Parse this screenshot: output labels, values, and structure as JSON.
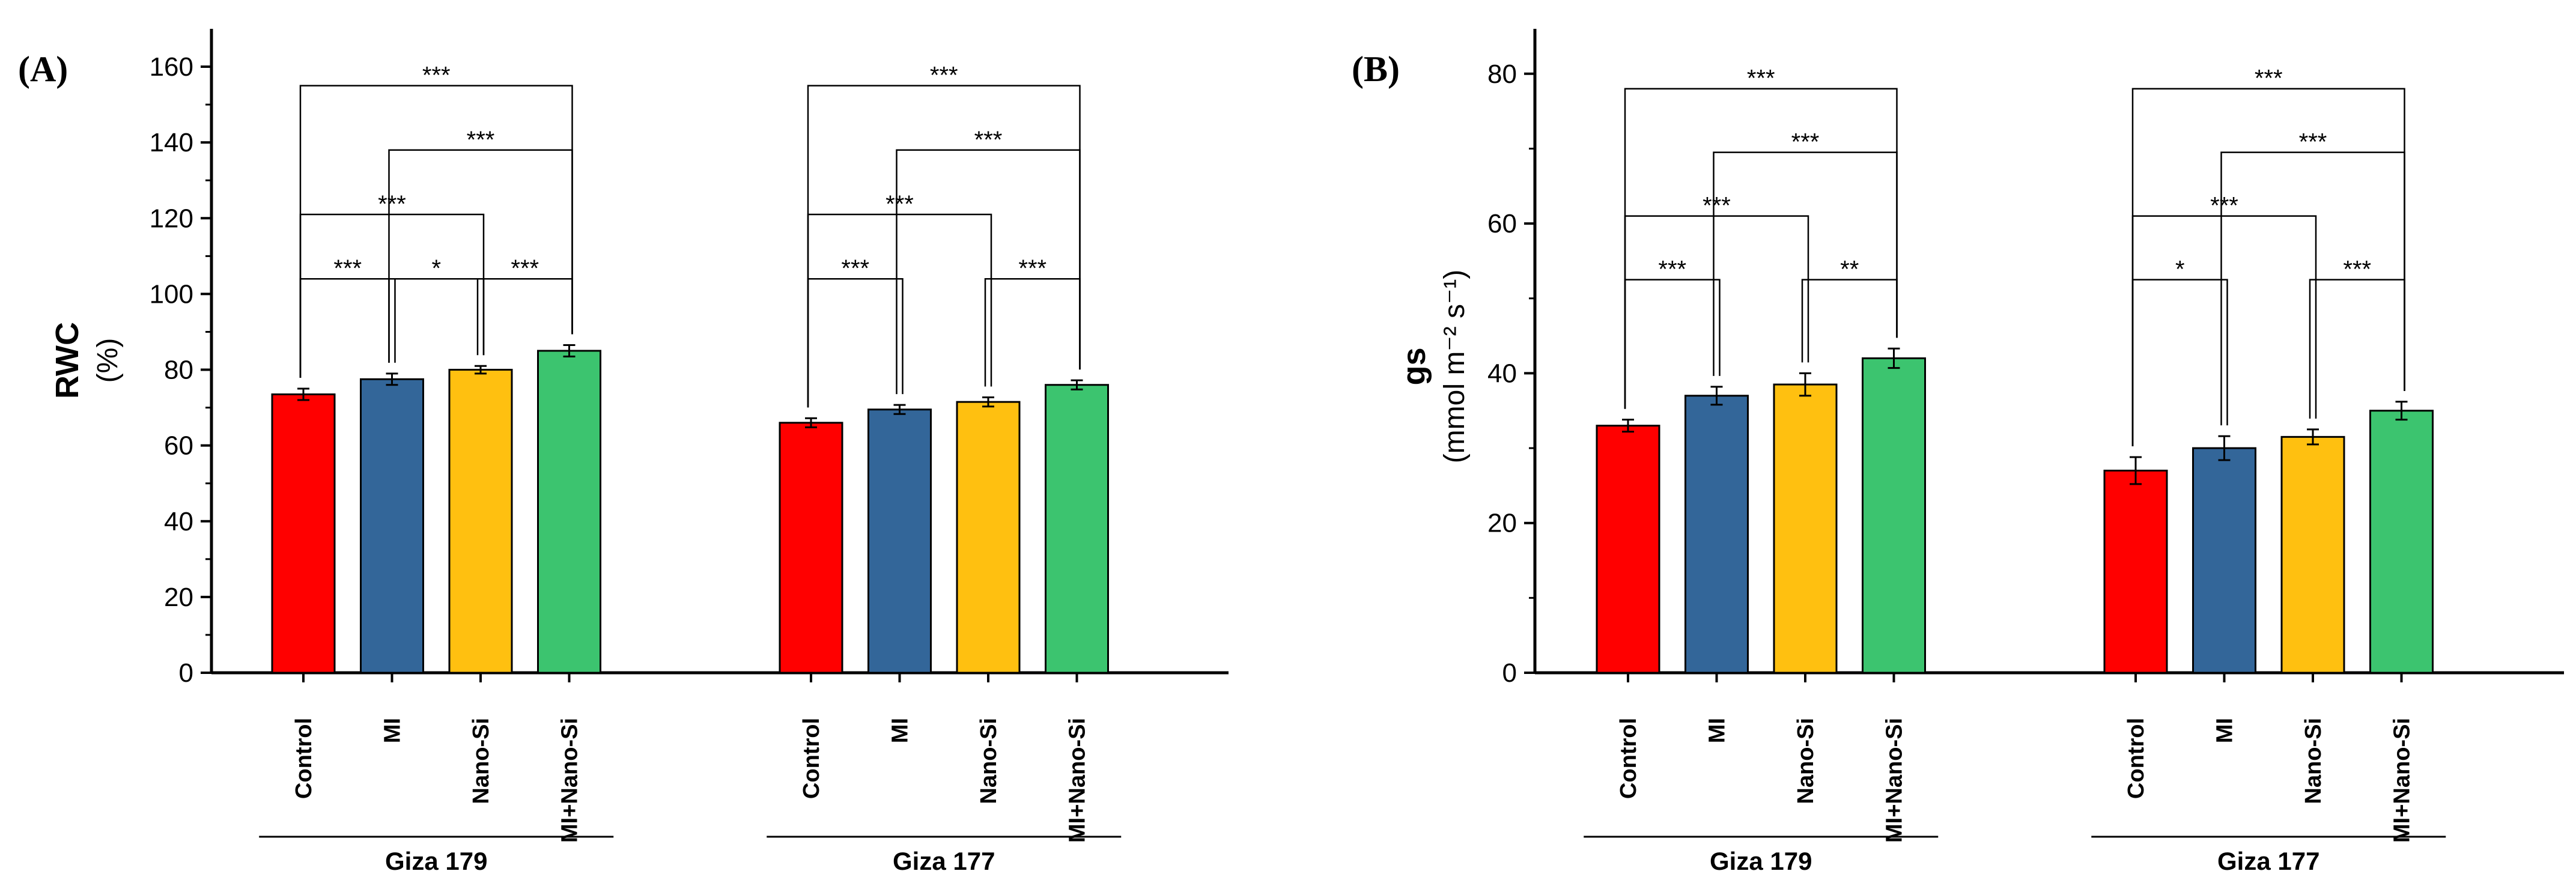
{
  "chart_data": [
    {
      "type": "bar",
      "panel": "(A)",
      "ylabel": "RWC",
      "yunit": "(%)",
      "ylim": [
        0,
        170
      ],
      "yticks": [
        0,
        20,
        40,
        60,
        80,
        100,
        120,
        140,
        160
      ],
      "categories": [
        "Control",
        "MI",
        "Nano-Si",
        "MI+Nano-Si"
      ],
      "colors": [
        "#ff0000",
        "#336699",
        "#ffc010",
        "#3cc46f"
      ],
      "groups": [
        {
          "name": "Giza 179",
          "values": [
            73.5,
            77.5,
            80,
            85
          ],
          "errors": [
            1.5,
            1.5,
            1,
            1.5
          ],
          "brackets": [
            {
              "from": 0,
              "to": 3,
              "y": 155,
              "label": "***"
            },
            {
              "from": 1,
              "to": 3,
              "y": 138,
              "label": "***"
            },
            {
              "from": 0,
              "to": 2,
              "y": 121,
              "label": "***"
            },
            {
              "from": 0,
              "to": 1,
              "y": 104,
              "label": "***"
            },
            {
              "from": 1,
              "to": 2,
              "y": 104,
              "label": "*"
            },
            {
              "from": 2,
              "to": 3,
              "y": 104,
              "label": "***"
            }
          ]
        },
        {
          "name": "Giza 177",
          "values": [
            66,
            69.5,
            71.5,
            76
          ],
          "errors": [
            1.2,
            1.2,
            1.2,
            1.2
          ],
          "brackets": [
            {
              "from": 0,
              "to": 3,
              "y": 155,
              "label": "***"
            },
            {
              "from": 1,
              "to": 3,
              "y": 138,
              "label": "***"
            },
            {
              "from": 0,
              "to": 2,
              "y": 121,
              "label": "***"
            },
            {
              "from": 0,
              "to": 1,
              "y": 104,
              "label": "***"
            },
            {
              "from": 2,
              "to": 3,
              "y": 104,
              "label": "***"
            }
          ]
        }
      ]
    },
    {
      "type": "bar",
      "panel": "(B)",
      "ylabel": "gs",
      "yunit": "(mmol m⁻² s⁻¹)",
      "ylim": [
        0,
        86
      ],
      "yticks": [
        0,
        20,
        40,
        60,
        80
      ],
      "categories": [
        "Control",
        "MI",
        "Nano-Si",
        "MI+Nano-Si"
      ],
      "colors": [
        "#ff0000",
        "#336699",
        "#ffc010",
        "#3cc46f"
      ],
      "groups": [
        {
          "name": "Giza 179",
          "values": [
            33,
            37,
            38.5,
            42
          ],
          "errors": [
            0.8,
            1.2,
            1.5,
            1.3
          ],
          "brackets": [
            {
              "from": 0,
              "to": 3,
              "y": 78,
              "label": "***"
            },
            {
              "from": 1,
              "to": 3,
              "y": 69.5,
              "label": "***"
            },
            {
              "from": 0,
              "to": 2,
              "y": 61,
              "label": "***"
            },
            {
              "from": 0,
              "to": 1,
              "y": 52.5,
              "label": "***"
            },
            {
              "from": 2,
              "to": 3,
              "y": 52.5,
              "label": "**"
            }
          ]
        },
        {
          "name": "Giza 177",
          "values": [
            27,
            30,
            31.5,
            35
          ],
          "errors": [
            1.8,
            1.6,
            1.0,
            1.2
          ],
          "brackets": [
            {
              "from": 0,
              "to": 3,
              "y": 78,
              "label": "***"
            },
            {
              "from": 1,
              "to": 3,
              "y": 69.5,
              "label": "***"
            },
            {
              "from": 0,
              "to": 2,
              "y": 61,
              "label": "***"
            },
            {
              "from": 0,
              "to": 1,
              "y": 52.5,
              "label": "*"
            },
            {
              "from": 2,
              "to": 3,
              "y": 52.5,
              "label": "***"
            }
          ]
        }
      ]
    }
  ]
}
